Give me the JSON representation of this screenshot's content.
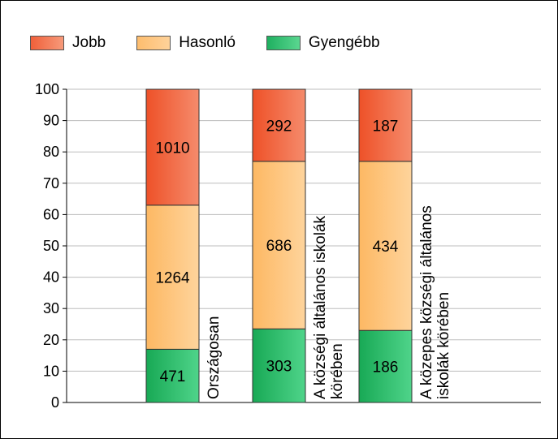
{
  "legend": [
    {
      "label": "Jobb",
      "color": "#f0603a"
    },
    {
      "label": "Hasonló",
      "color": "#fdbd6e"
    },
    {
      "label": "Gyengébb",
      "color": "#2fbf6f"
    }
  ],
  "chart_data": {
    "type": "bar",
    "stacked": true,
    "categories": [
      [
        "Országosan"
      ],
      [
        "A községi általános iskolák",
        "körében"
      ],
      [
        "A közepes községi általános",
        "iskolák körében"
      ]
    ],
    "series": [
      {
        "name": "Gyengébb",
        "percent": [
          17,
          23.5,
          23
        ],
        "labels": [
          "471",
          "303",
          "186"
        ]
      },
      {
        "name": "Hasonló",
        "percent": [
          46,
          53.5,
          54
        ],
        "labels": [
          "1264",
          "686",
          "434"
        ]
      },
      {
        "name": "Jobb",
        "percent": [
          37,
          23,
          23
        ],
        "labels": [
          "1010",
          "292",
          "187"
        ]
      }
    ],
    "ylim": [
      0,
      100
    ],
    "yticks": [
      "0",
      "10",
      "20",
      "30",
      "40",
      "50",
      "60",
      "70",
      "80",
      "90",
      "100"
    ],
    "grid": true,
    "legend_position": "top-left"
  }
}
